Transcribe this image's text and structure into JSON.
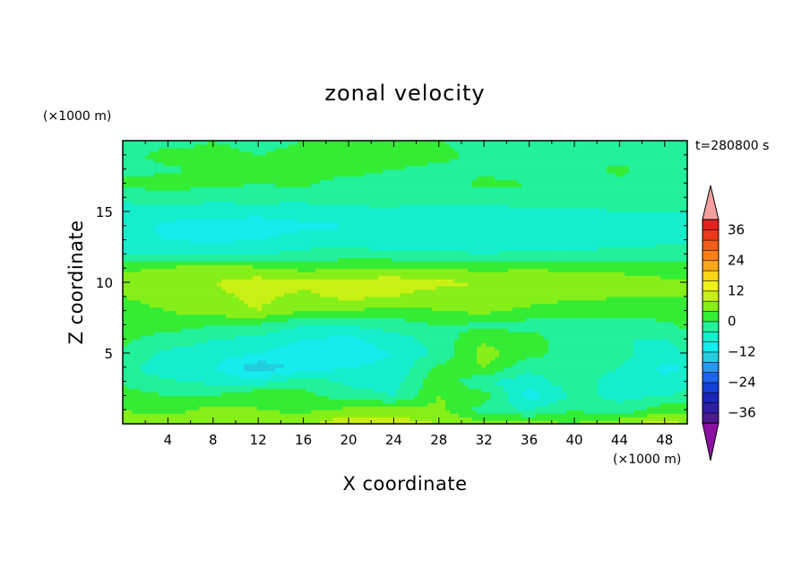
{
  "chart_data": {
    "type": "heatmap",
    "title": "zonal velocity",
    "xlabel": "X coordinate",
    "ylabel": "Z coordinate",
    "x_unit": "(×1000 m)",
    "y_unit": "(×1000 m)",
    "time_label": "t=280800 s",
    "xlim": [
      0,
      50
    ],
    "ylim": [
      0,
      20
    ],
    "x_ticks": [
      4,
      8,
      12,
      16,
      20,
      24,
      28,
      32,
      36,
      40,
      44,
      48
    ],
    "y_ticks": [
      5,
      10,
      15
    ],
    "colorbar": {
      "levels": [
        -40,
        -36,
        -32,
        -28,
        -24,
        -20,
        -16,
        -12,
        -8,
        -4,
        0,
        4,
        8,
        12,
        16,
        20,
        24,
        28,
        32,
        36,
        40
      ],
      "labels": [
        36,
        24,
        12,
        0,
        -12,
        -24,
        -36
      ],
      "colors": [
        "#4c1a8c",
        "#2e1ea6",
        "#1a24b8",
        "#1440d6",
        "#1e64ea",
        "#2a96ee",
        "#24cce0",
        "#14ecee",
        "#14eecc",
        "#22f09a",
        "#34ec34",
        "#86ee18",
        "#c8f014",
        "#f0f01a",
        "#f8d418",
        "#f8a818",
        "#f88018",
        "#f25c18",
        "#ea3a1a",
        "#e2221e"
      ],
      "under_color": "#8c10a4",
      "over_color": "#f4a0a0",
      "extend": "both"
    },
    "z_grid": {
      "x": [
        0,
        4,
        8,
        12,
        16,
        20,
        24,
        28,
        32,
        36,
        40,
        44,
        48,
        50
      ],
      "z": [
        0,
        1,
        2,
        3,
        4,
        5,
        6,
        7,
        8,
        9,
        10,
        11,
        12,
        13,
        14,
        15,
        16,
        17,
        18,
        19,
        20
      ],
      "u": [
        [
          6,
          8,
          6,
          7,
          7,
          12,
          10,
          8,
          6,
          6,
          4,
          8,
          10,
          8
        ],
        [
          4,
          2,
          6,
          4,
          3,
          5,
          6,
          5,
          -2,
          -4,
          0,
          -3,
          3,
          2
        ],
        [
          2,
          0,
          0,
          4,
          1,
          -2,
          -4,
          4,
          2,
          -10,
          -3,
          -5,
          -4,
          -3
        ],
        [
          -1,
          -3,
          -5,
          -6,
          -1,
          -5,
          -6,
          3,
          -4,
          -6,
          -2,
          -6,
          -7,
          -5
        ],
        [
          -2,
          -8,
          -8,
          -15,
          -10,
          -8,
          -7,
          1,
          4,
          -3,
          -2,
          -4,
          -9,
          -8
        ],
        [
          -1,
          -5,
          -6,
          -8,
          -11,
          -10,
          -8,
          -3,
          6,
          1,
          -1,
          -3,
          -6,
          -4
        ],
        [
          1,
          -2,
          -4,
          -5,
          -8,
          -9,
          -6,
          -2,
          3,
          2,
          -3,
          -4,
          -4,
          -2
        ],
        [
          2,
          2,
          0,
          -1,
          -4,
          -4,
          -2,
          0,
          -1,
          -2,
          -1,
          -2,
          -1,
          1
        ],
        [
          3,
          4,
          6,
          8,
          4,
          4,
          2,
          4,
          5,
          3,
          1,
          2,
          2,
          3
        ],
        [
          4,
          5,
          7,
          9,
          7,
          9,
          8,
          6,
          5,
          6,
          5,
          4,
          4,
          4
        ],
        [
          6,
          6,
          8,
          10,
          9,
          10,
          10,
          9,
          8,
          7,
          7,
          6,
          5,
          5
        ],
        [
          3,
          5,
          6,
          5,
          3,
          4,
          5,
          4,
          3,
          4,
          3,
          3,
          2,
          2
        ],
        [
          -4,
          -4,
          -5,
          -4,
          -3,
          -2,
          -3,
          -3,
          -4,
          -3,
          -3,
          -2,
          -2,
          -2
        ],
        [
          -7,
          -8,
          -9,
          -8,
          -6,
          -6,
          -7,
          -7,
          -6,
          -6,
          -7,
          -6,
          -5,
          -5
        ],
        [
          -6,
          -9,
          -10,
          -10,
          -9,
          -8,
          -7,
          -8,
          -7,
          -8,
          -7,
          -7,
          -6,
          -5
        ],
        [
          -6,
          -6,
          -6,
          -7,
          -6,
          -6,
          -5,
          -6,
          -6,
          -5,
          -5,
          -4,
          -4,
          -4
        ],
        [
          -3,
          -2,
          -3,
          -2,
          -3,
          -1,
          -2,
          -2,
          -2,
          -1,
          -1,
          -2,
          -2,
          -2
        ],
        [
          1,
          2,
          1,
          0,
          1,
          -2,
          -3,
          -2,
          1,
          0,
          -1,
          -1,
          -2,
          -1
        ],
        [
          -1,
          -1,
          2,
          1,
          1,
          2,
          0,
          -1,
          -1,
          -2,
          -2,
          1,
          -3,
          -2
        ],
        [
          -2,
          2,
          1,
          0,
          1,
          2,
          2,
          1,
          -1,
          0,
          0,
          -2,
          -2,
          -2
        ],
        [
          -1,
          -2,
          0,
          -1,
          0,
          0,
          1,
          0,
          -1,
          0,
          -1,
          -1,
          -1,
          -1
        ]
      ]
    }
  }
}
